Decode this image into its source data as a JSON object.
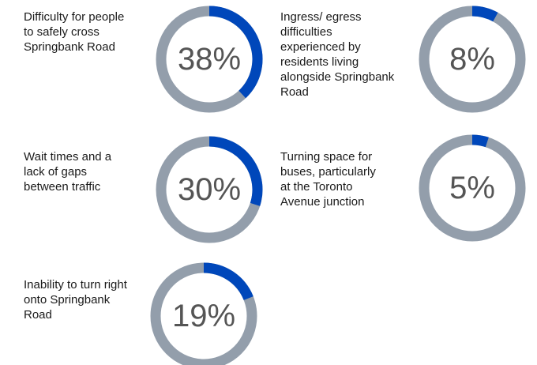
{
  "chart_data": [
    {
      "type": "donut",
      "title": "Difficulty for people\nto safely cross\nSpringbank Road",
      "values": [
        38
      ],
      "value_labels": [
        "38%"
      ],
      "color": "#0047ba",
      "track_color": "#939eab"
    },
    {
      "type": "donut",
      "title": "Ingress/ egress\ndifficulties\nexperienced by\nresidents living\nalongside Springbank\nRoad",
      "values": [
        8
      ],
      "value_labels": [
        "8%"
      ],
      "color": "#0047ba",
      "track_color": "#939eab"
    },
    {
      "type": "donut",
      "title": "Wait times and a\nlack of gaps\nbetween traffic",
      "values": [
        30
      ],
      "value_labels": [
        "30%"
      ],
      "color": "#0047ba",
      "track_color": "#939eab"
    },
    {
      "type": "donut",
      "title": "Turning space for\nbuses, particularly\nat the Toronto\nAvenue junction",
      "values": [
        5
      ],
      "value_labels": [
        "5%"
      ],
      "color": "#0047ba",
      "track_color": "#939eab"
    },
    {
      "type": "donut",
      "title": "Inability to turn right\nonto Springbank\nRoad",
      "values": [
        19
      ],
      "value_labels": [
        "19%"
      ],
      "color": "#0047ba",
      "track_color": "#939eab"
    }
  ]
}
